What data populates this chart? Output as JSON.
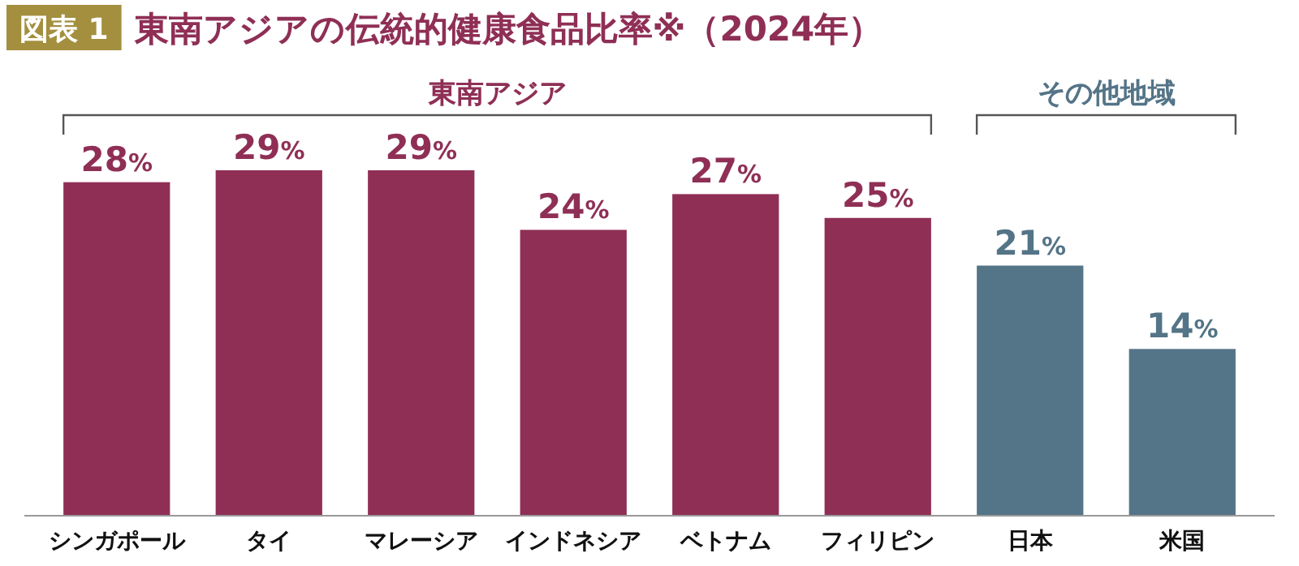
{
  "chart_data": {
    "type": "bar",
    "title": "東南アジアの伝統的健康食品比率※（2024年）",
    "categories": [
      "シンガポール",
      "タイ",
      "マレーシア",
      "インドネシア",
      "ベトナム",
      "フィリピン",
      "日本",
      "米国"
    ],
    "values": [
      28,
      29,
      29,
      24,
      27,
      25,
      21,
      14
    ],
    "colors": [
      "#8f2f55",
      "#8f2f55",
      "#8f2f55",
      "#8f2f55",
      "#8f2f55",
      "#8f2f55",
      "#547487",
      "#547487"
    ],
    "value_labels": [
      "28%",
      "29%",
      "29%",
      "24%",
      "27%",
      "25%",
      "21%",
      "14%"
    ],
    "annotations": [
      "図表 1",
      "東南アジア",
      "その他地域"
    ]
  }
}
